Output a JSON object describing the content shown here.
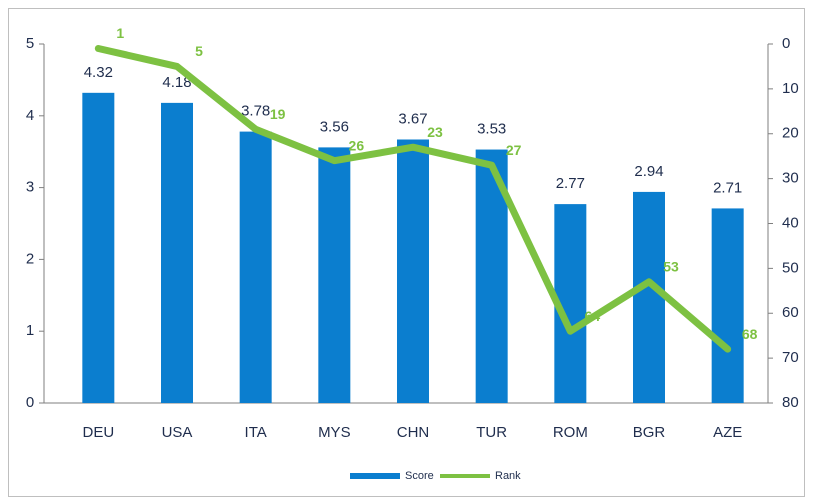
{
  "chart_data": {
    "type": "bar",
    "categories": [
      "DEU",
      "USA",
      "ITA",
      "MYS",
      "CHN",
      "TUR",
      "ROM",
      "BGR",
      "AZE"
    ],
    "series": [
      {
        "name": "Score",
        "type": "bar",
        "color": "#0b7ecf",
        "values": [
          4.32,
          4.18,
          3.78,
          3.56,
          3.67,
          3.53,
          2.77,
          2.94,
          2.71
        ]
      },
      {
        "name": "Rank",
        "type": "line",
        "axis": "y2",
        "color": "#7dc142",
        "values": [
          1,
          5,
          19,
          26,
          23,
          27,
          64,
          53,
          68
        ]
      }
    ],
    "ylim": [
      0,
      5
    ],
    "yticks": [
      0,
      1,
      2,
      3,
      4,
      5
    ],
    "y2lim": [
      80,
      0
    ],
    "y2ticks": [
      0,
      10,
      20,
      30,
      40,
      50,
      60,
      70,
      80
    ],
    "legend": "bottom"
  }
}
